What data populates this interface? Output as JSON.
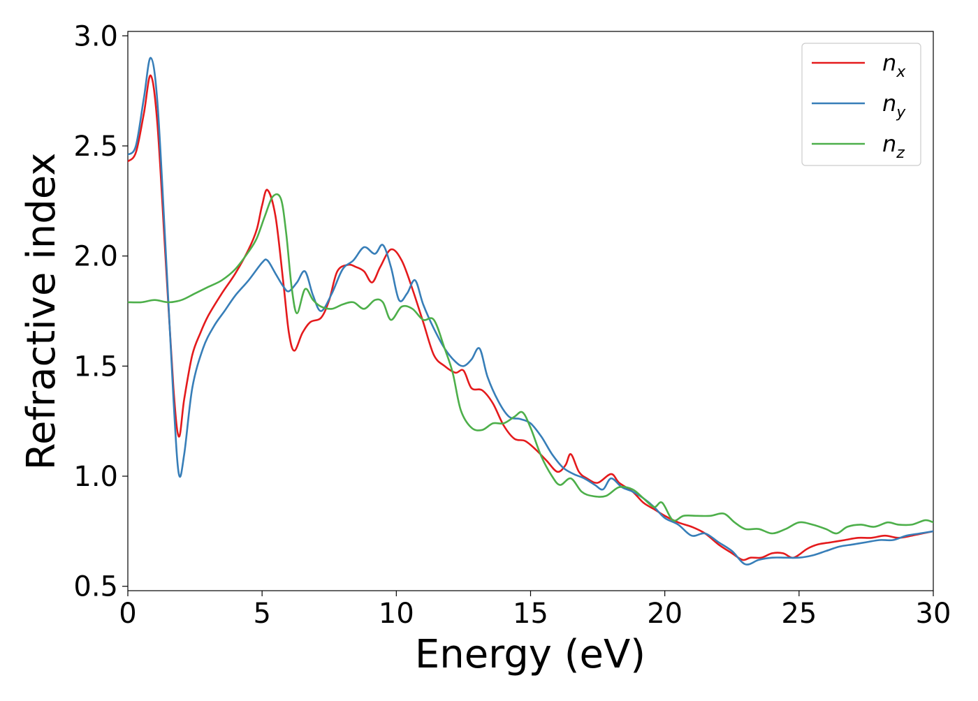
{
  "chart_data": {
    "type": "line",
    "xlabel": "Energy (eV)",
    "ylabel": "Refractive index",
    "xlim": [
      0,
      30
    ],
    "ylim": [
      0.48,
      3.02
    ],
    "xticks": [
      0,
      5,
      10,
      15,
      20,
      25,
      30
    ],
    "xtick_labels": [
      "0",
      "5",
      "10",
      "15",
      "20",
      "25",
      "30"
    ],
    "yticks": [
      0.5,
      1.0,
      1.5,
      2.0,
      2.5,
      3.0
    ],
    "ytick_labels": [
      "0.5",
      "1.0",
      "1.5",
      "2.0",
      "2.5",
      "3.0"
    ],
    "grid": false,
    "legend_position": "top-right",
    "series": [
      {
        "name": "n",
        "subscript": "x",
        "color": "#e41a1c",
        "points": [
          [
            0,
            2.43
          ],
          [
            0.3,
            2.47
          ],
          [
            0.6,
            2.65
          ],
          [
            0.85,
            2.82
          ],
          [
            1.1,
            2.6
          ],
          [
            1.4,
            2.0
          ],
          [
            1.7,
            1.4
          ],
          [
            1.9,
            1.18
          ],
          [
            2.1,
            1.35
          ],
          [
            2.4,
            1.55
          ],
          [
            2.7,
            1.65
          ],
          [
            3.0,
            1.73
          ],
          [
            3.5,
            1.83
          ],
          [
            4.0,
            1.92
          ],
          [
            4.5,
            2.03
          ],
          [
            4.8,
            2.12
          ],
          [
            5.0,
            2.23
          ],
          [
            5.2,
            2.3
          ],
          [
            5.5,
            2.18
          ],
          [
            5.8,
            1.87
          ],
          [
            6.0,
            1.65
          ],
          [
            6.2,
            1.57
          ],
          [
            6.5,
            1.65
          ],
          [
            6.8,
            1.7
          ],
          [
            7.2,
            1.72
          ],
          [
            7.5,
            1.8
          ],
          [
            7.8,
            1.93
          ],
          [
            8.2,
            1.96
          ],
          [
            8.5,
            1.95
          ],
          [
            8.8,
            1.93
          ],
          [
            9.1,
            1.88
          ],
          [
            9.4,
            1.95
          ],
          [
            9.8,
            2.03
          ],
          [
            10.2,
            1.98
          ],
          [
            10.6,
            1.85
          ],
          [
            11.0,
            1.7
          ],
          [
            11.4,
            1.55
          ],
          [
            11.8,
            1.5
          ],
          [
            12.2,
            1.47
          ],
          [
            12.5,
            1.48
          ],
          [
            12.8,
            1.4
          ],
          [
            13.2,
            1.39
          ],
          [
            13.6,
            1.33
          ],
          [
            14.0,
            1.23
          ],
          [
            14.4,
            1.17
          ],
          [
            14.8,
            1.16
          ],
          [
            15.2,
            1.12
          ],
          [
            15.6,
            1.07
          ],
          [
            16.0,
            1.02
          ],
          [
            16.3,
            1.05
          ],
          [
            16.5,
            1.1
          ],
          [
            16.8,
            1.02
          ],
          [
            17.1,
            0.99
          ],
          [
            17.5,
            0.97
          ],
          [
            18.0,
            1.01
          ],
          [
            18.3,
            0.97
          ],
          [
            18.8,
            0.93
          ],
          [
            19.2,
            0.88
          ],
          [
            19.6,
            0.85
          ],
          [
            20.0,
            0.82
          ],
          [
            20.5,
            0.79
          ],
          [
            21.0,
            0.77
          ],
          [
            21.5,
            0.74
          ],
          [
            22.0,
            0.69
          ],
          [
            22.5,
            0.65
          ],
          [
            22.9,
            0.62
          ],
          [
            23.2,
            0.63
          ],
          [
            23.6,
            0.63
          ],
          [
            24.0,
            0.65
          ],
          [
            24.4,
            0.65
          ],
          [
            24.8,
            0.63
          ],
          [
            25.3,
            0.67
          ],
          [
            25.7,
            0.69
          ],
          [
            26.2,
            0.7
          ],
          [
            26.7,
            0.71
          ],
          [
            27.2,
            0.72
          ],
          [
            27.7,
            0.72
          ],
          [
            28.2,
            0.73
          ],
          [
            28.7,
            0.72
          ],
          [
            29.2,
            0.73
          ],
          [
            29.6,
            0.74
          ],
          [
            30.0,
            0.75
          ]
        ]
      },
      {
        "name": "n",
        "subscript": "y",
        "color": "#377eb8",
        "points": [
          [
            0,
            2.46
          ],
          [
            0.3,
            2.5
          ],
          [
            0.6,
            2.72
          ],
          [
            0.85,
            2.9
          ],
          [
            1.1,
            2.7
          ],
          [
            1.4,
            2.05
          ],
          [
            1.7,
            1.35
          ],
          [
            1.9,
            1.01
          ],
          [
            2.1,
            1.1
          ],
          [
            2.4,
            1.4
          ],
          [
            2.8,
            1.58
          ],
          [
            3.2,
            1.68
          ],
          [
            3.6,
            1.75
          ],
          [
            4.0,
            1.82
          ],
          [
            4.5,
            1.89
          ],
          [
            5.0,
            1.97
          ],
          [
            5.2,
            1.98
          ],
          [
            5.5,
            1.92
          ],
          [
            5.8,
            1.86
          ],
          [
            6.0,
            1.84
          ],
          [
            6.3,
            1.88
          ],
          [
            6.6,
            1.93
          ],
          [
            6.9,
            1.82
          ],
          [
            7.2,
            1.75
          ],
          [
            7.6,
            1.83
          ],
          [
            8.0,
            1.94
          ],
          [
            8.4,
            1.98
          ],
          [
            8.8,
            2.04
          ],
          [
            9.2,
            2.01
          ],
          [
            9.5,
            2.05
          ],
          [
            9.8,
            1.95
          ],
          [
            10.1,
            1.8
          ],
          [
            10.4,
            1.83
          ],
          [
            10.7,
            1.89
          ],
          [
            11.0,
            1.78
          ],
          [
            11.4,
            1.67
          ],
          [
            11.8,
            1.58
          ],
          [
            12.2,
            1.52
          ],
          [
            12.5,
            1.5
          ],
          [
            12.8,
            1.53
          ],
          [
            13.1,
            1.58
          ],
          [
            13.4,
            1.45
          ],
          [
            13.8,
            1.34
          ],
          [
            14.2,
            1.27
          ],
          [
            14.6,
            1.26
          ],
          [
            15.0,
            1.24
          ],
          [
            15.4,
            1.18
          ],
          [
            15.8,
            1.1
          ],
          [
            16.2,
            1.04
          ],
          [
            16.6,
            1.01
          ],
          [
            17.0,
            0.99
          ],
          [
            17.4,
            0.96
          ],
          [
            17.7,
            0.94
          ],
          [
            18.0,
            0.99
          ],
          [
            18.4,
            0.95
          ],
          [
            18.8,
            0.93
          ],
          [
            19.2,
            0.9
          ],
          [
            19.6,
            0.86
          ],
          [
            20.0,
            0.81
          ],
          [
            20.5,
            0.78
          ],
          [
            21.0,
            0.73
          ],
          [
            21.5,
            0.74
          ],
          [
            22.0,
            0.7
          ],
          [
            22.5,
            0.66
          ],
          [
            23.0,
            0.6
          ],
          [
            23.5,
            0.62
          ],
          [
            24.0,
            0.63
          ],
          [
            24.5,
            0.63
          ],
          [
            25.0,
            0.63
          ],
          [
            25.5,
            0.64
          ],
          [
            26.0,
            0.66
          ],
          [
            26.5,
            0.68
          ],
          [
            27.0,
            0.69
          ],
          [
            27.5,
            0.7
          ],
          [
            28.0,
            0.71
          ],
          [
            28.5,
            0.71
          ],
          [
            29.0,
            0.73
          ],
          [
            29.5,
            0.74
          ],
          [
            30.0,
            0.75
          ]
        ]
      },
      {
        "name": "n",
        "subscript": "z",
        "color": "#4daf4a",
        "points": [
          [
            0,
            1.79
          ],
          [
            0.5,
            1.79
          ],
          [
            1.0,
            1.8
          ],
          [
            1.5,
            1.79
          ],
          [
            2.0,
            1.8
          ],
          [
            2.5,
            1.83
          ],
          [
            3.0,
            1.86
          ],
          [
            3.5,
            1.89
          ],
          [
            4.0,
            1.94
          ],
          [
            4.5,
            2.02
          ],
          [
            4.8,
            2.08
          ],
          [
            5.1,
            2.18
          ],
          [
            5.4,
            2.27
          ],
          [
            5.7,
            2.26
          ],
          [
            5.9,
            2.1
          ],
          [
            6.1,
            1.86
          ],
          [
            6.3,
            1.74
          ],
          [
            6.6,
            1.85
          ],
          [
            6.9,
            1.8
          ],
          [
            7.2,
            1.77
          ],
          [
            7.6,
            1.76
          ],
          [
            8.0,
            1.78
          ],
          [
            8.4,
            1.79
          ],
          [
            8.8,
            1.76
          ],
          [
            9.2,
            1.8
          ],
          [
            9.5,
            1.79
          ],
          [
            9.8,
            1.71
          ],
          [
            10.2,
            1.77
          ],
          [
            10.6,
            1.76
          ],
          [
            11.0,
            1.71
          ],
          [
            11.4,
            1.71
          ],
          [
            11.8,
            1.58
          ],
          [
            12.1,
            1.47
          ],
          [
            12.4,
            1.3
          ],
          [
            12.8,
            1.22
          ],
          [
            13.2,
            1.21
          ],
          [
            13.6,
            1.24
          ],
          [
            14.0,
            1.24
          ],
          [
            14.4,
            1.27
          ],
          [
            14.7,
            1.29
          ],
          [
            15.0,
            1.22
          ],
          [
            15.4,
            1.09
          ],
          [
            15.8,
            1.0
          ],
          [
            16.1,
            0.96
          ],
          [
            16.5,
            0.99
          ],
          [
            16.9,
            0.93
          ],
          [
            17.3,
            0.91
          ],
          [
            17.8,
            0.91
          ],
          [
            18.3,
            0.95
          ],
          [
            18.8,
            0.94
          ],
          [
            19.2,
            0.9
          ],
          [
            19.6,
            0.86
          ],
          [
            19.9,
            0.88
          ],
          [
            20.3,
            0.8
          ],
          [
            20.7,
            0.82
          ],
          [
            21.2,
            0.82
          ],
          [
            21.7,
            0.82
          ],
          [
            22.2,
            0.83
          ],
          [
            22.6,
            0.79
          ],
          [
            23.0,
            0.76
          ],
          [
            23.5,
            0.76
          ],
          [
            24.0,
            0.74
          ],
          [
            24.5,
            0.76
          ],
          [
            25.0,
            0.79
          ],
          [
            25.5,
            0.78
          ],
          [
            26.0,
            0.76
          ],
          [
            26.4,
            0.74
          ],
          [
            26.8,
            0.77
          ],
          [
            27.3,
            0.78
          ],
          [
            27.8,
            0.77
          ],
          [
            28.3,
            0.79
          ],
          [
            28.7,
            0.78
          ],
          [
            29.2,
            0.78
          ],
          [
            29.7,
            0.8
          ],
          [
            30.0,
            0.79
          ]
        ]
      }
    ]
  }
}
